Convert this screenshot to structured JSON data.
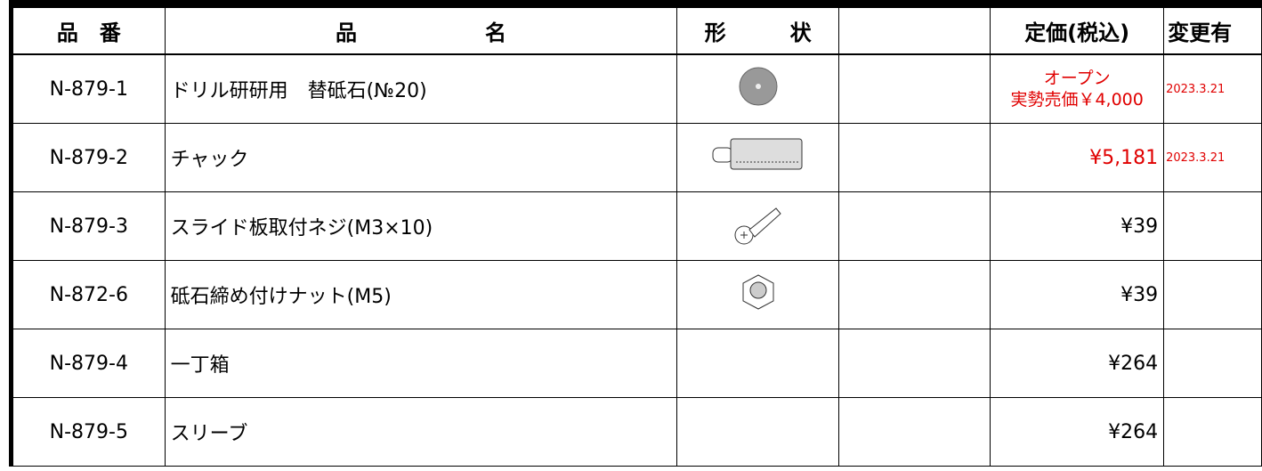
{
  "table": {
    "header": {
      "code": "品　番",
      "name": "品　　　　　　名",
      "shape": "形　　　状",
      "price": "定価(税込)",
      "change": "変更有"
    },
    "rows": [
      {
        "code": "N-879-1",
        "name": "ドリル研研用　替砥石(№20)",
        "price": [
          "オープン",
          "実勢売価￥4,000"
        ],
        "change": "2023.3.21"
      },
      {
        "code": "N-879-2",
        "name": "チャック",
        "price": "¥5,181",
        "change": "2023.3.21"
      },
      {
        "code": "N-879-3",
        "name": "スライド板取付ネジ(M3×10)",
        "price": "¥39"
      },
      {
        "code": "N-872-6",
        "name": "砥石締め付けナット(M5)",
        "price": "¥39"
      },
      {
        "code": "N-879-4",
        "name": "一丁箱",
        "price": "¥264"
      },
      {
        "code": "N-879-5",
        "name": "スリーブ",
        "price": "¥264"
      }
    ]
  }
}
